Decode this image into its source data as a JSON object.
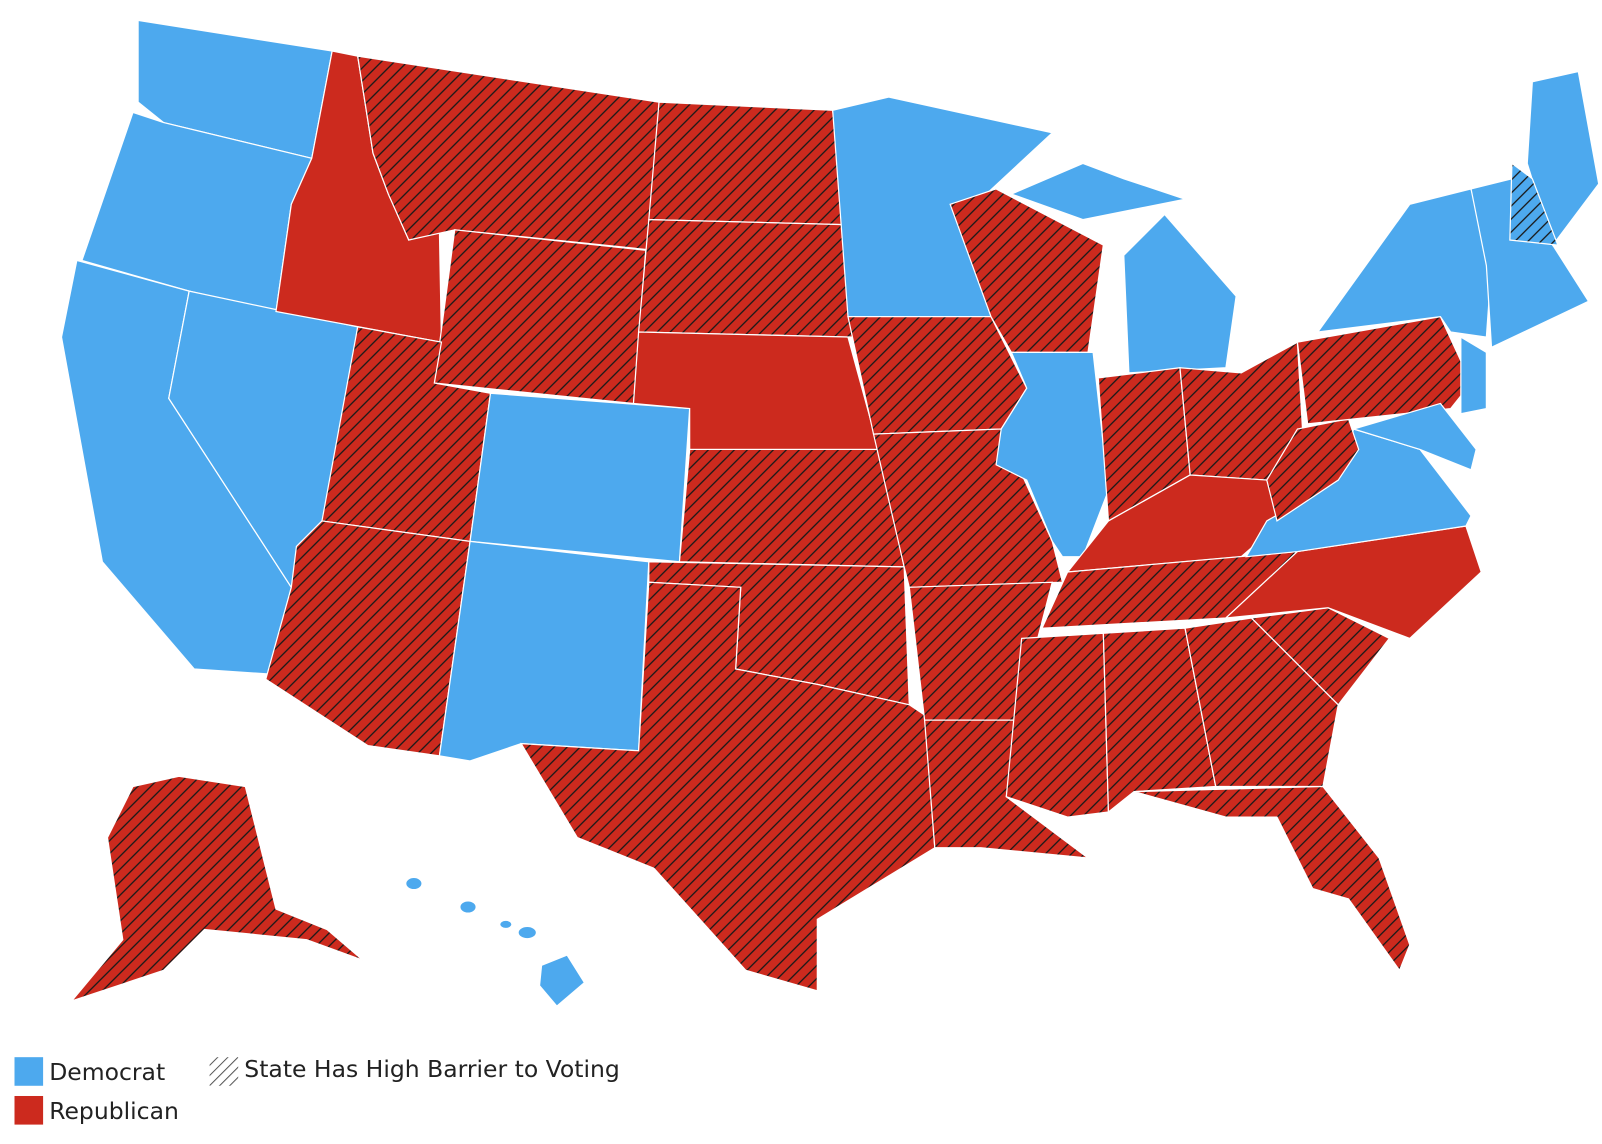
{
  "legend": {
    "items": [
      {
        "label": "Democrat"
      },
      {
        "label": "Republican"
      },
      {
        "label": "State Has High Barrier to Voting"
      }
    ]
  }
}
